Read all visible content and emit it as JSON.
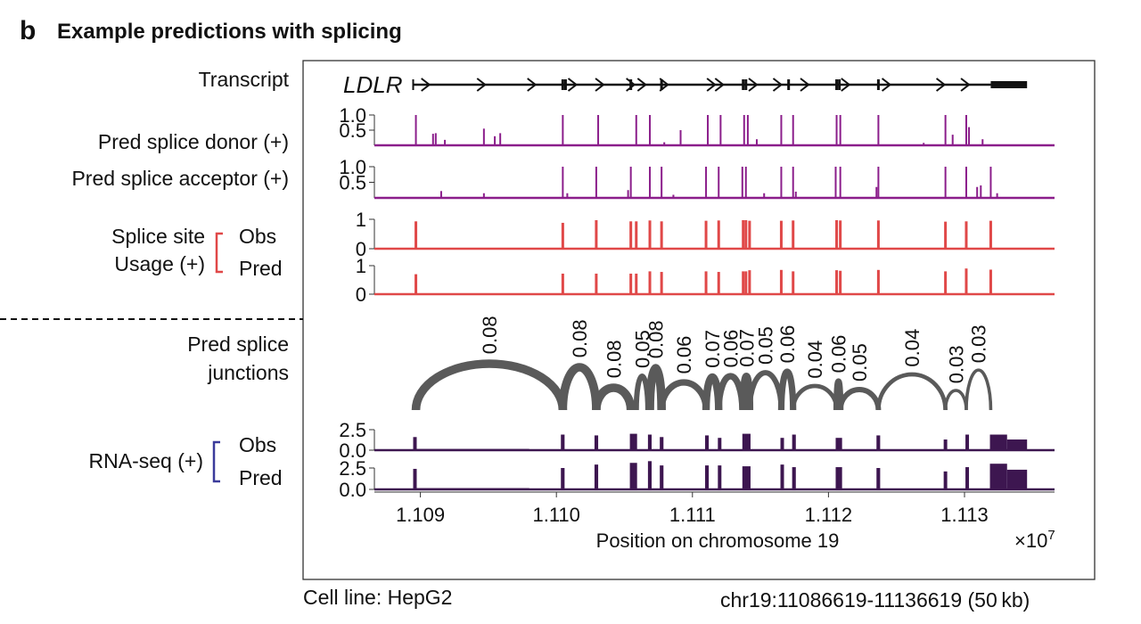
{
  "panel_letter": "b",
  "title": "Example predictions with splicing",
  "footer": {
    "cell_line": "Cell line: HepG2",
    "region": "chr19:11086619-11136619 (50 kb)"
  },
  "labels": {
    "transcript": "Transcript",
    "donor": "Pred splice donor (+)",
    "acceptor": "Pred splice acceptor (+)",
    "usage_line1": "Splice site",
    "usage_line2": "Usage (+)",
    "usage_obs": "Obs",
    "usage_pred": "Pred",
    "junctions_line1": "Pred splice",
    "junctions_line2": "junctions",
    "rnaseq": "RNA-seq (+)",
    "rnaseq_obs": "Obs",
    "rnaseq_pred": "Pred"
  },
  "colors": {
    "splice_prob": "#8b1e8b",
    "usage": "#e04848",
    "junction": "#5a5a5a",
    "rnaseq": "#3d1650",
    "transcript": "#111111"
  },
  "chart_data": {
    "type": "genome-browser-tracks",
    "gene": "LDLR",
    "xlabel": "Position on chromosome 19",
    "x_multiplier": "×10",
    "x_multiplier_exp": "7",
    "xlim": [
      11086619,
      11136619
    ],
    "xticks": [
      {
        "value": 11090000,
        "label": "1.109"
      },
      {
        "value": 11100000,
        "label": "1.110"
      },
      {
        "value": 11110000,
        "label": "1.111"
      },
      {
        "value": 11120000,
        "label": "1.112"
      },
      {
        "value": 11130000,
        "label": "1.113"
      }
    ],
    "transcript": {
      "start": 11089470,
      "end": 11134600,
      "utr3_start": 11131930,
      "exon_marks": [
        11100470,
        11100670,
        11105470,
        11107730,
        11113730,
        11113930,
        11117070,
        11120600,
        11120800,
        11123670
      ],
      "strand_arrows": [
        11090400,
        11094500,
        11098200,
        11101200,
        11103200,
        11105470,
        11106300,
        11107930,
        11111400,
        11112000,
        11114470,
        11116270,
        11118270,
        11121270,
        11124270,
        11128270,
        11130070
      ]
    },
    "splice_sites": [
      11089670,
      11100470,
      11102930,
      11105470,
      11105870,
      11106870,
      11107730,
      11111000,
      11111930,
      11113730,
      11113930,
      11114200,
      11116530,
      11117400,
      11120600,
      11120870,
      11123670,
      11128600,
      11130130,
      11131930
    ],
    "donor": {
      "yticks": [
        {
          "value": 1.0,
          "label": "1.0"
        },
        {
          "value": 0.5,
          "label": "0.5"
        }
      ],
      "peaks": [
        [
          11089670,
          1.0
        ],
        [
          11090930,
          0.38
        ],
        [
          11091130,
          0.4
        ],
        [
          11091800,
          0.18
        ],
        [
          11094670,
          0.55
        ],
        [
          11095470,
          0.3
        ],
        [
          11095870,
          0.4
        ],
        [
          11100470,
          1.0
        ],
        [
          11103070,
          1.0
        ],
        [
          11105870,
          1.0
        ],
        [
          11106870,
          1.0
        ],
        [
          11107930,
          0.1
        ],
        [
          11109130,
          0.5
        ],
        [
          11111130,
          1.0
        ],
        [
          11112070,
          1.0
        ],
        [
          11113800,
          1.0
        ],
        [
          11114070,
          1.0
        ],
        [
          11114730,
          0.2
        ],
        [
          11116530,
          1.0
        ],
        [
          11117400,
          1.0
        ],
        [
          11120600,
          1.0
        ],
        [
          11120870,
          1.0
        ],
        [
          11123670,
          1.0
        ],
        [
          11127000,
          0.08
        ],
        [
          11128600,
          1.0
        ],
        [
          11129130,
          0.35
        ],
        [
          11130130,
          1.0
        ],
        [
          11130330,
          0.6
        ],
        [
          11131330,
          0.2
        ]
      ]
    },
    "acceptor": {
      "yticks": [
        {
          "value": 1.0,
          "label": "1.0"
        },
        {
          "value": 0.5,
          "label": "0.5"
        }
      ],
      "peaks": [
        [
          11091530,
          0.22
        ],
        [
          11094670,
          0.15
        ],
        [
          11100470,
          1.0
        ],
        [
          11100800,
          0.15
        ],
        [
          11102930,
          1.0
        ],
        [
          11105270,
          0.25
        ],
        [
          11105470,
          1.0
        ],
        [
          11106870,
          1.0
        ],
        [
          11107730,
          1.0
        ],
        [
          11108600,
          0.1
        ],
        [
          11111000,
          1.0
        ],
        [
          11111930,
          1.0
        ],
        [
          11113670,
          1.0
        ],
        [
          11113930,
          1.0
        ],
        [
          11115270,
          0.15
        ],
        [
          11116530,
          1.0
        ],
        [
          11117400,
          1.0
        ],
        [
          11117600,
          0.2
        ],
        [
          11120530,
          1.0
        ],
        [
          11120870,
          1.0
        ],
        [
          11123530,
          0.35
        ],
        [
          11123670,
          1.0
        ],
        [
          11128600,
          1.0
        ],
        [
          11130130,
          1.0
        ],
        [
          11130930,
          0.35
        ],
        [
          11131200,
          0.4
        ],
        [
          11131930,
          1.0
        ],
        [
          11132400,
          0.15
        ]
      ]
    },
    "usage_obs": {
      "yticks": [
        {
          "value": 1,
          "label": "1"
        },
        {
          "value": 0,
          "label": "0"
        }
      ],
      "values": [
        0.93,
        0.88,
        0.97,
        0.93,
        0.93,
        0.96,
        0.93,
        0.95,
        0.96,
        0.97,
        0.97,
        0.95,
        0.95,
        0.96,
        0.97,
        0.96,
        0.96,
        0.92,
        0.93,
        0.95
      ]
    },
    "usage_pred": {
      "yticks": [
        {
          "value": 1,
          "label": "1"
        },
        {
          "value": 0,
          "label": "0"
        }
      ],
      "values": [
        0.7,
        0.72,
        0.72,
        0.72,
        0.72,
        0.8,
        0.78,
        0.8,
        0.78,
        0.8,
        0.8,
        0.84,
        0.85,
        0.8,
        0.84,
        0.82,
        0.85,
        0.8,
        0.9,
        0.86
      ]
    },
    "junctions": [
      {
        "start": 11089670,
        "end": 11100470,
        "value": 0.08,
        "label": "0.08"
      },
      {
        "start": 11100470,
        "end": 11102930,
        "value": 0.08,
        "label": "0.08"
      },
      {
        "start": 11102930,
        "end": 11105470,
        "value": 0.08,
        "label": "0.08"
      },
      {
        "start": 11105870,
        "end": 11106730,
        "value": 0.05,
        "label": "0.05"
      },
      {
        "start": 11106870,
        "end": 11107730,
        "value": 0.08,
        "label": "0.08"
      },
      {
        "start": 11107730,
        "end": 11111000,
        "value": 0.06,
        "label": "0.06"
      },
      {
        "start": 11111000,
        "end": 11111930,
        "value": 0.07,
        "label": "0.07"
      },
      {
        "start": 11111930,
        "end": 11113670,
        "value": 0.06,
        "label": "0.06"
      },
      {
        "start": 11113730,
        "end": 11114200,
        "value": 0.07,
        "label": "0.07"
      },
      {
        "start": 11114200,
        "end": 11116530,
        "value": 0.05,
        "label": "0.05"
      },
      {
        "start": 11116530,
        "end": 11117400,
        "value": 0.06,
        "label": "0.06"
      },
      {
        "start": 11117400,
        "end": 11120600,
        "value": 0.04,
        "label": "0.04"
      },
      {
        "start": 11120600,
        "end": 11120870,
        "value": 0.06,
        "label": "0.06"
      },
      {
        "start": 11120870,
        "end": 11123670,
        "value": 0.05,
        "label": "0.05"
      },
      {
        "start": 11123670,
        "end": 11128600,
        "value": 0.04,
        "label": "0.04"
      },
      {
        "start": 11128600,
        "end": 11130130,
        "value": 0.03,
        "label": "0.03"
      },
      {
        "start": 11130130,
        "end": 11131930,
        "value": 0.03,
        "label": "0.03"
      }
    ],
    "rnaseq_yticks": [
      {
        "value": 2.5,
        "label": "2.5"
      },
      {
        "value": 0.0,
        "label": "0.0"
      }
    ],
    "rnaseq_blocks": [
      {
        "start": 11089470,
        "end": 11089730,
        "obs": 1.6,
        "pred": 2.4
      },
      {
        "start": 11089730,
        "end": 11098000,
        "obs": 0.15,
        "pred": 0.15
      },
      {
        "start": 11100330,
        "end": 11100600,
        "obs": 1.9,
        "pred": 2.5
      },
      {
        "start": 11102800,
        "end": 11103070,
        "obs": 1.8,
        "pred": 2.9
      },
      {
        "start": 11105400,
        "end": 11105930,
        "obs": 2.0,
        "pred": 3.1
      },
      {
        "start": 11106730,
        "end": 11107000,
        "obs": 1.9,
        "pred": 3.3
      },
      {
        "start": 11107600,
        "end": 11107870,
        "obs": 1.6,
        "pred": 2.8
      },
      {
        "start": 11110930,
        "end": 11111200,
        "obs": 1.8,
        "pred": 2.8
      },
      {
        "start": 11111870,
        "end": 11112130,
        "obs": 1.5,
        "pred": 2.8
      },
      {
        "start": 11113670,
        "end": 11114270,
        "obs": 2.0,
        "pred": 2.7
      },
      {
        "start": 11116470,
        "end": 11116730,
        "obs": 1.5,
        "pred": 2.9
      },
      {
        "start": 11117330,
        "end": 11117600,
        "obs": 1.9,
        "pred": 2.6
      },
      {
        "start": 11120530,
        "end": 11121000,
        "obs": 1.5,
        "pred": 2.6
      },
      {
        "start": 11123530,
        "end": 11123800,
        "obs": 1.8,
        "pred": 2.5
      },
      {
        "start": 11128470,
        "end": 11128730,
        "obs": 1.3,
        "pred": 2.1
      },
      {
        "start": 11130070,
        "end": 11130330,
        "obs": 1.9,
        "pred": 2.6
      },
      {
        "start": 11131870,
        "end": 11133130,
        "obs": 1.9,
        "pred": 3.0
      },
      {
        "start": 11133130,
        "end": 11134600,
        "obs": 1.3,
        "pred": 2.3
      }
    ]
  }
}
